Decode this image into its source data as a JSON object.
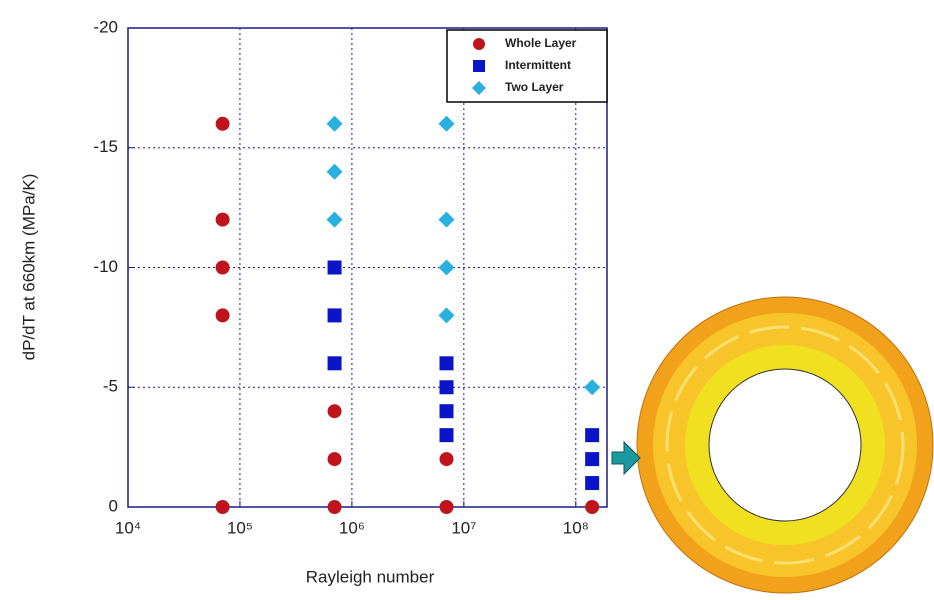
{
  "chart_data": {
    "type": "scatter",
    "x_label": "Rayleigh number",
    "y_label": "dP/dT at 660km (MPa/K)",
    "x_scale": "log",
    "xlim": [
      10000,
      190000000
    ],
    "xticks": [
      {
        "value": 10000,
        "label": "10⁴"
      },
      {
        "value": 100000,
        "label": "10⁵"
      },
      {
        "value": 1000000,
        "label": "10⁶"
      },
      {
        "value": 10000000,
        "label": "10⁷"
      },
      {
        "value": 100000000,
        "label": "10⁸"
      }
    ],
    "ylim": [
      0,
      -20
    ],
    "yticks": [
      -20,
      -15,
      -10,
      -5,
      0
    ],
    "grid": true,
    "legend": "upper right",
    "series": [
      {
        "name": "Whole Layer",
        "color": "#c0141c",
        "marker": "circle",
        "x": [
          70000,
          70000,
          70000,
          70000,
          70000,
          700000,
          700000,
          700000,
          7000000,
          7000000,
          140000000
        ],
        "values": [
          -16,
          -12,
          -10,
          -8,
          0,
          -4,
          -2,
          0,
          -2,
          0,
          0
        ]
      },
      {
        "name": "Intermittent",
        "color": "#0a14c8",
        "marker": "square",
        "x": [
          700000,
          700000,
          700000,
          7000000,
          7000000,
          7000000,
          7000000,
          140000000,
          140000000,
          140000000
        ],
        "values": [
          -10,
          -8,
          -6,
          -6,
          -5,
          -4,
          -3,
          -3,
          -2,
          -1
        ]
      },
      {
        "name": "Two Layer",
        "color": "#2ab0e0",
        "marker": "diamond",
        "x": [
          700000,
          700000,
          700000,
          7000000,
          7000000,
          7000000,
          7000000,
          140000000
        ],
        "values": [
          -16,
          -14,
          -12,
          -16,
          -12,
          -10,
          -8,
          -5
        ]
      }
    ]
  }
}
